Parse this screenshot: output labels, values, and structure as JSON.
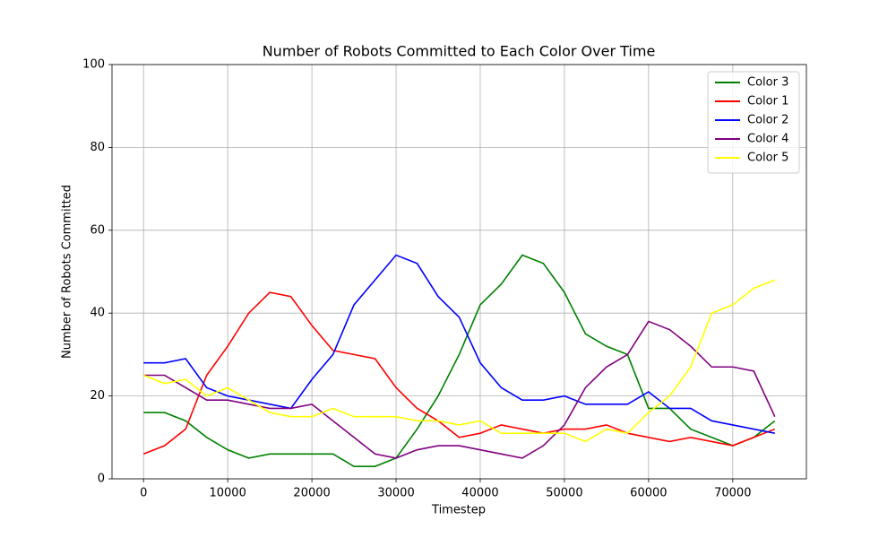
{
  "chart_data": {
    "type": "line",
    "title": "Number of Robots Committed to Each Color Over Time",
    "x_label": "Timestep",
    "y_label": "Number of Robots Committed",
    "x": [
      0,
      2500,
      5000,
      7500,
      10000,
      12500,
      15000,
      17500,
      20000,
      22500,
      25000,
      27500,
      30000,
      32500,
      35000,
      37500,
      40000,
      42500,
      45000,
      47500,
      50000,
      52500,
      55000,
      57500,
      60000,
      62500,
      65000,
      67500,
      70000,
      72500,
      75000
    ],
    "series": [
      {
        "name": "Color 3",
        "color": "green",
        "values": [
          16,
          16,
          14,
          10,
          7,
          5,
          6,
          6,
          6,
          6,
          3,
          3,
          5,
          12,
          20,
          30,
          42,
          47,
          54,
          52,
          45,
          35,
          32,
          30,
          17,
          17,
          12,
          10,
          8,
          10,
          14
        ]
      },
      {
        "name": "Color 1",
        "color": "red",
        "values": [
          6,
          8,
          12,
          25,
          32,
          40,
          45,
          44,
          37,
          31,
          30,
          29,
          22,
          17,
          14,
          10,
          11,
          13,
          12,
          11,
          12,
          12,
          13,
          11,
          10,
          9,
          10,
          9,
          8,
          10,
          12
        ]
      },
      {
        "name": "Color 2",
        "color": "blue",
        "values": [
          28,
          28,
          29,
          22,
          20,
          19,
          18,
          17,
          24,
          30,
          42,
          48,
          54,
          52,
          44,
          39,
          28,
          22,
          19,
          19,
          20,
          18,
          18,
          18,
          21,
          17,
          17,
          14,
          13,
          12,
          11
        ]
      },
      {
        "name": "Color 4",
        "color": "purple",
        "values": [
          25,
          25,
          22,
          19,
          19,
          18,
          17,
          17,
          18,
          14,
          10,
          6,
          5,
          7,
          8,
          8,
          7,
          6,
          5,
          8,
          13,
          22,
          27,
          30,
          38,
          36,
          32,
          27,
          27,
          26,
          15
        ]
      },
      {
        "name": "Color 5",
        "color": "yellow",
        "values": [
          25,
          23,
          24,
          20,
          22,
          19,
          16,
          15,
          15,
          17,
          15,
          15,
          15,
          14,
          14,
          13,
          14,
          11,
          11,
          11,
          11,
          9,
          12,
          11,
          16,
          20,
          27,
          40,
          42,
          46,
          48
        ]
      }
    ],
    "xlim": [
      -3750,
      78750
    ],
    "ylim": [
      0,
      100
    ],
    "xticks": [
      0,
      10000,
      20000,
      30000,
      40000,
      50000,
      60000,
      70000
    ],
    "yticks": [
      0,
      20,
      40,
      60,
      80,
      100
    ],
    "grid": true,
    "legend": "upper-right"
  }
}
